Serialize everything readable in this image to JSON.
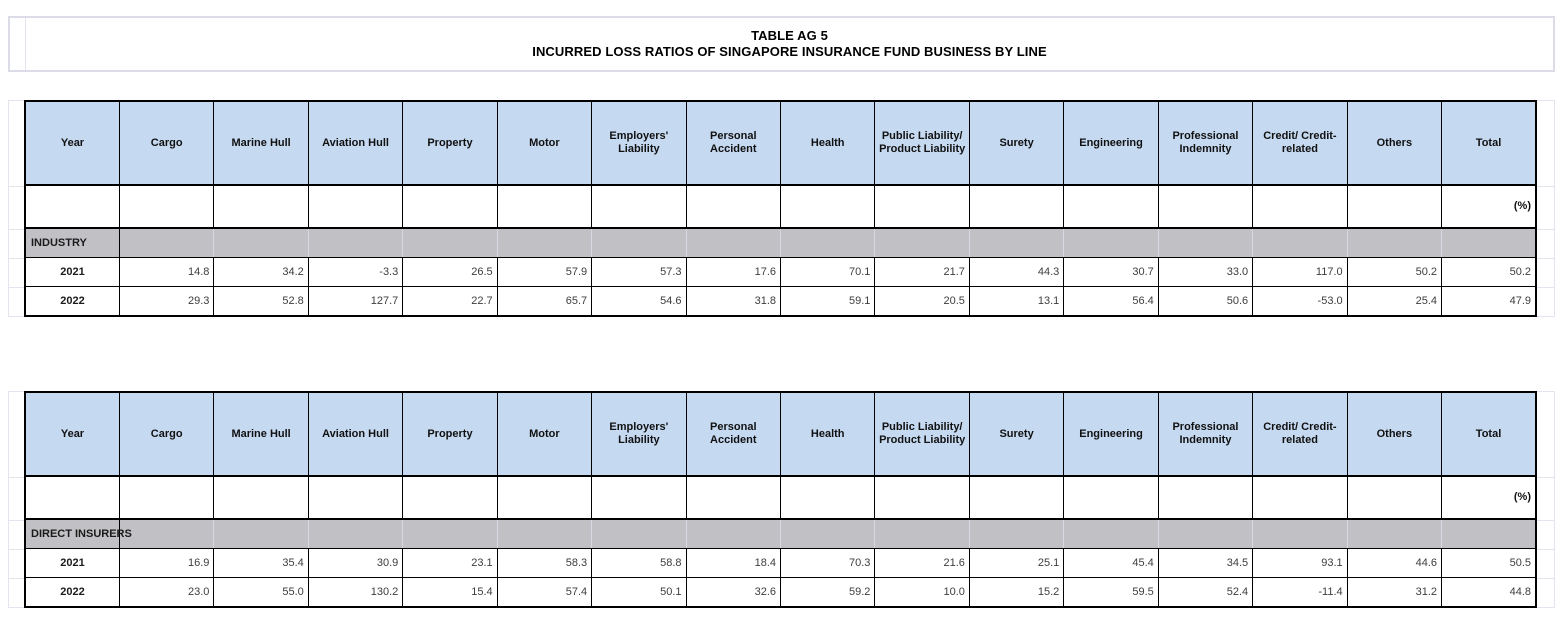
{
  "title": {
    "line1": "TABLE AG 5",
    "line2": "INCURRED LOSS RATIOS OF SINGAPORE INSURANCE FUND BUSINESS BY LINE"
  },
  "unit_label": "(%)",
  "columns": [
    "Year",
    "Cargo",
    "Marine Hull",
    "Aviation Hull",
    "Property",
    "Motor",
    "Employers' Liability",
    "Personal Accident",
    "Health",
    "Public Liability/ Product Liability",
    "Surety",
    "Engineering",
    "Professional Indemnity",
    "Credit/ Credit-related",
    "Others",
    "Total"
  ],
  "tables": [
    {
      "section": "INDUSTRY",
      "rows": [
        {
          "year": "2021",
          "values": [
            "14.8",
            "34.2",
            "-3.3",
            "26.5",
            "57.9",
            "57.3",
            "17.6",
            "70.1",
            "21.7",
            "44.3",
            "30.7",
            "33.0",
            "117.0",
            "50.2",
            "50.2"
          ]
        },
        {
          "year": "2022",
          "values": [
            "29.3",
            "52.8",
            "127.7",
            "22.7",
            "65.7",
            "54.6",
            "31.8",
            "59.1",
            "20.5",
            "13.1",
            "56.4",
            "50.6",
            "-53.0",
            "25.4",
            "47.9"
          ]
        }
      ]
    },
    {
      "section": "DIRECT INSURERS",
      "rows": [
        {
          "year": "2021",
          "values": [
            "16.9",
            "35.4",
            "30.9",
            "23.1",
            "58.3",
            "58.8",
            "18.4",
            "70.3",
            "21.6",
            "25.1",
            "45.4",
            "34.5",
            "93.1",
            "44.6",
            "50.5"
          ]
        },
        {
          "year": "2022",
          "values": [
            "23.0",
            "55.0",
            "130.2",
            "15.4",
            "57.4",
            "50.1",
            "32.6",
            "59.2",
            "10.0",
            "15.2",
            "59.5",
            "52.4",
            "-11.4",
            "31.2",
            "44.8"
          ]
        }
      ]
    }
  ],
  "colors": {
    "header_fill": "#c5d9f1",
    "section_fill": "#c1c1c5",
    "table_border": "#000000",
    "sheet_gridline": "#e4e4ef"
  }
}
